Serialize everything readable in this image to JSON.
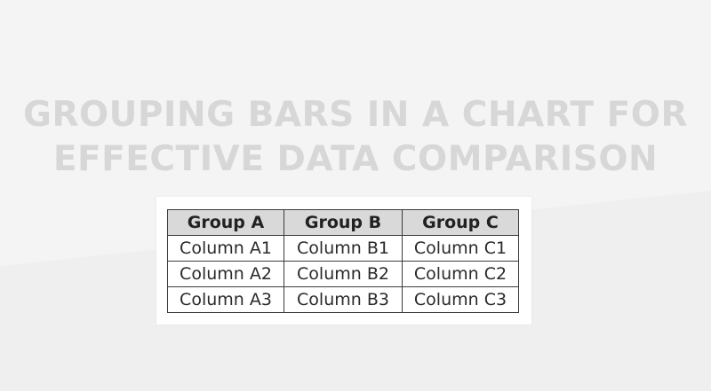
{
  "title": {
    "line1": "GROUPING BARS IN A CHART FOR",
    "line2": "EFFECTIVE DATA COMPARISON"
  },
  "table": {
    "headers": [
      "Group A",
      "Group B",
      "Group C"
    ],
    "rows": [
      [
        "Column A1",
        "Column B1",
        "Column C1"
      ],
      [
        "Column A2",
        "Column B2",
        "Column C2"
      ],
      [
        "Column A3",
        "Column B3",
        "Column C3"
      ]
    ]
  },
  "colors": {
    "background": "#f4f4f4",
    "title_text": "#d7d7d7",
    "header_fill": "#d9d9d9",
    "border": "#3a3a3a"
  }
}
